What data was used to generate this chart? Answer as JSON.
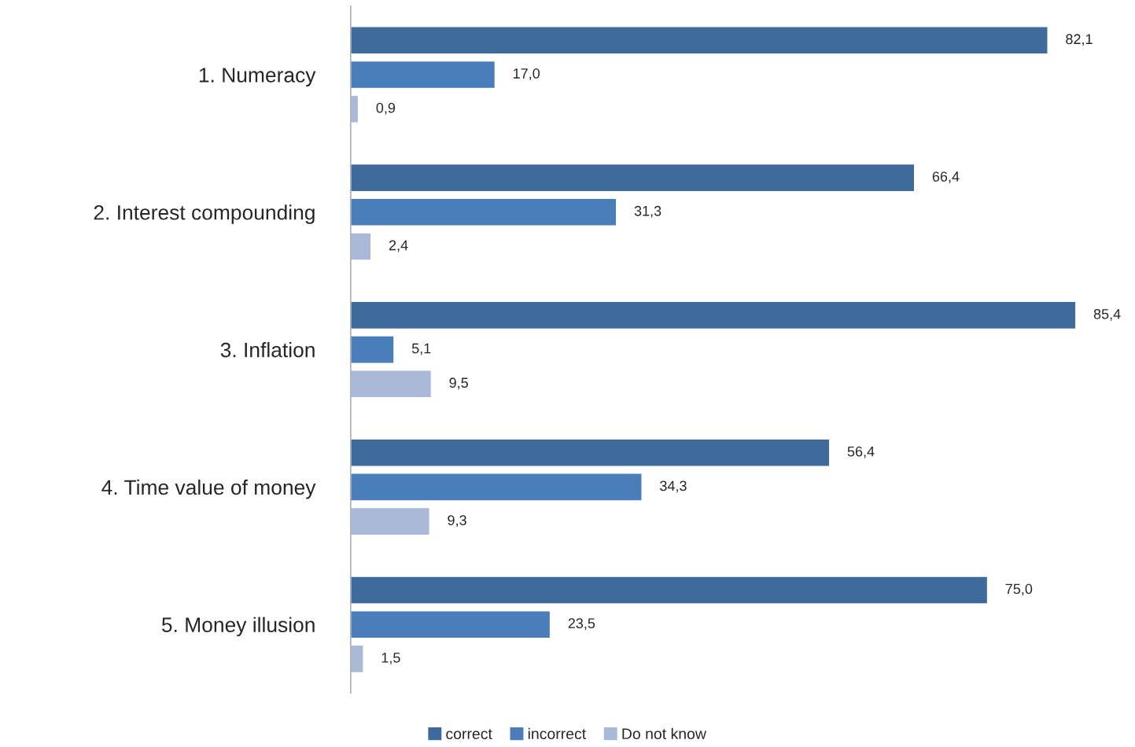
{
  "chart_data": {
    "type": "bar",
    "orientation": "horizontal",
    "categories": [
      "1. Numeracy",
      "2. Interest compounding",
      "3. Inflation",
      "4. Time value of money",
      "5. Money illusion"
    ],
    "series": [
      {
        "name": "correct",
        "color": "#3f6a9c",
        "values": [
          82.1,
          66.4,
          85.4,
          56.4,
          75.0
        ],
        "value_labels": [
          "82,1",
          "66,4",
          "85,4",
          "56,4",
          "75,0"
        ]
      },
      {
        "name": "incorrect",
        "color": "#4a7ebb",
        "values": [
          17.0,
          31.3,
          5.1,
          34.3,
          23.5
        ],
        "value_labels": [
          "17,0",
          "31,3",
          "5,1",
          "34,3",
          "23,5"
        ]
      },
      {
        "name": "Do not know",
        "color": "#aab9d7",
        "values": [
          0.9,
          2.4,
          9.5,
          9.3,
          1.5
        ],
        "value_labels": [
          "0,9",
          "2,4",
          "9,5",
          "9,3",
          "1,5"
        ]
      }
    ],
    "legend": "bottom",
    "grid": false
  }
}
